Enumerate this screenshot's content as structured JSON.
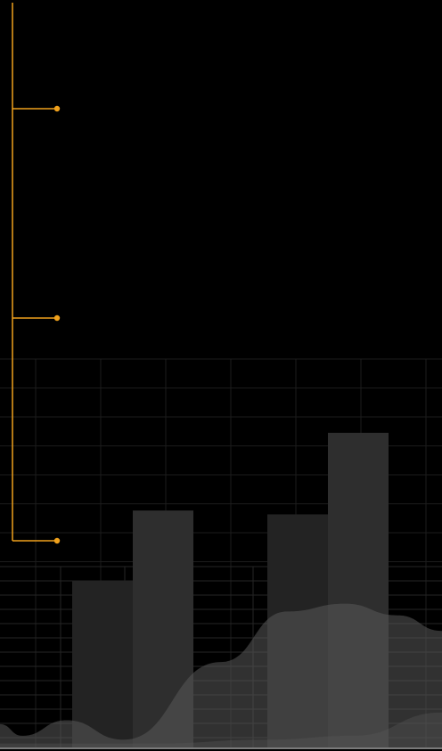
{
  "colors": {
    "background": "#000000",
    "accent": "#f0a11c",
    "grid": "#1c1c1c",
    "grid_lower": "#262626",
    "bar_dark": "#232323",
    "bar_light": "#2e2e2e",
    "area_fill": "#5a5a5a",
    "baseline": "#7a7a7a"
  },
  "timeline": {
    "markers": [
      {
        "label": ""
      },
      {
        "label": ""
      },
      {
        "label": ""
      }
    ]
  },
  "chart_data": {
    "type": "bar",
    "title": "",
    "xlabel": "",
    "ylabel": "",
    "grid": true,
    "legend": "none",
    "ylim": [
      0,
      100
    ],
    "groups": [
      {
        "values": [
          43,
          61
        ]
      },
      {
        "values": [
          60,
          81
        ]
      }
    ],
    "area": {
      "type": "area",
      "points": [
        [
          0,
          6
        ],
        [
          0.05,
          3
        ],
        [
          0.15,
          7
        ],
        [
          0.28,
          2
        ],
        [
          0.5,
          22
        ],
        [
          0.65,
          35
        ],
        [
          0.78,
          37
        ],
        [
          0.9,
          34
        ],
        [
          1,
          30
        ]
      ],
      "secondary": [
        [
          0,
          1
        ],
        [
          0.35,
          1
        ],
        [
          0.6,
          2
        ],
        [
          0.8,
          3
        ],
        [
          1,
          9
        ]
      ]
    }
  }
}
